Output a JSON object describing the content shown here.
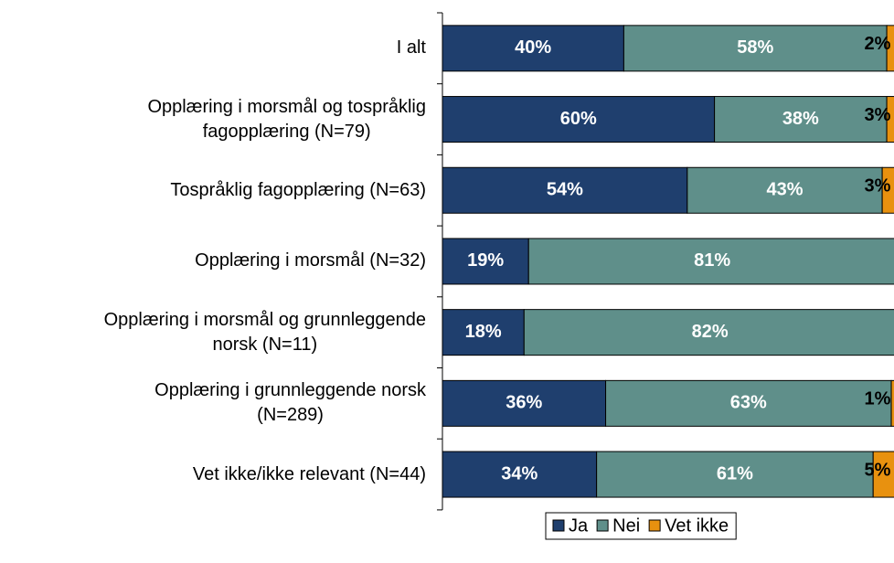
{
  "chart_data": {
    "type": "stacked-bar-horizontal",
    "categories": [
      "I alt",
      "Opplæring i morsmål og tospråklig\nfagopplæring (N=79)",
      "Tospråklig fagopplæring (N=63)",
      "Opplæring i morsmål (N=32)",
      "Opplæring i morsmål og grunnleggende\nnorsk (N=11)",
      "Opplæring i grunnleggende norsk\n(N=289)",
      "Vet ikke/ikke relevant (N=44)"
    ],
    "series": [
      {
        "name": "Ja",
        "color": "#1f3f6e",
        "values": [
          40,
          60,
          54,
          19,
          18,
          36,
          34
        ],
        "value_labels": [
          "40%",
          "60%",
          "54%",
          "19%",
          "18%",
          "36%",
          "34%"
        ]
      },
      {
        "name": "Nei",
        "color": "#5f8f8a",
        "values": [
          58,
          38,
          43,
          81,
          82,
          63,
          61
        ],
        "value_labels": [
          "58%",
          "38%",
          "43%",
          "81%",
          "82%",
          "63%",
          "61%"
        ]
      },
      {
        "name": "Vet ikke",
        "color": "#e8910f",
        "values": [
          2,
          3,
          3,
          0,
          0,
          1,
          5
        ],
        "value_labels": [
          "2%",
          "3%",
          "3%",
          null,
          null,
          "1%",
          "5%"
        ]
      }
    ],
    "legend": "bottom"
  }
}
